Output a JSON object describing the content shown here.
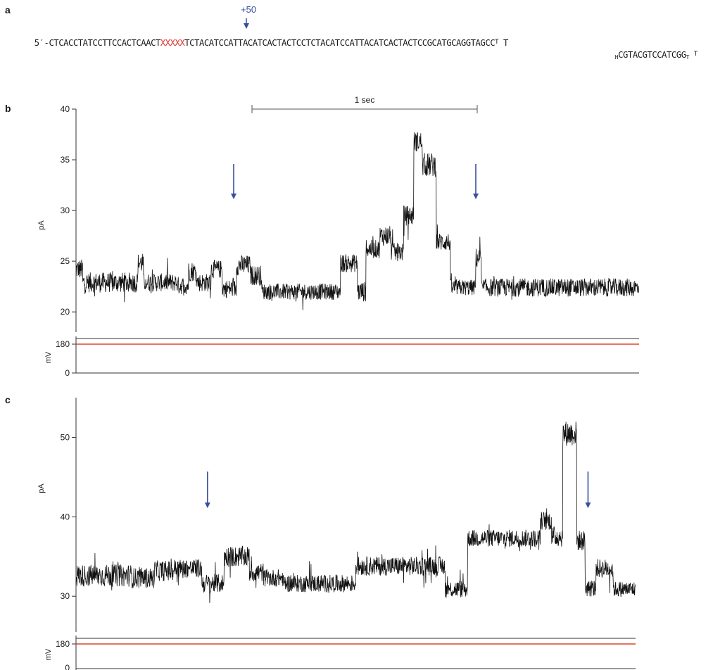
{
  "panel_a": {
    "letter": "a",
    "position_label": "+50",
    "seq_prefix": "5′-CTCACCTATCCTTCCACTCAACT",
    "seq_modified": "XXXXX",
    "seq_main": "TCTACATCCATTACATCACTACTCCTCTACATCCATTACATCACTACTCCGCATGCAGGTAGCC",
    "seq_loop_top": "T",
    "seq_loop_top_end": "T",
    "seq_bottom_start": "H",
    "seq_bottom": "CGTACGTCCATCGG",
    "seq_bottom_loop": "T",
    "seq_bottom_end": "T"
  },
  "colors": {
    "trace": "#111111",
    "arrow": "#3a4f9c",
    "voltage_line": "#e0452a",
    "modified_bases": "#e0302a"
  },
  "chart_data": [
    {
      "panel": "b",
      "type": "line",
      "ylabel": "pA",
      "yticks": [
        20,
        25,
        30,
        35,
        40
      ],
      "ylim": [
        18,
        40
      ],
      "scale_bar_label": "1 sec",
      "arrows_at_fraction_of_time": [
        0.28,
        0.71
      ],
      "segments": [
        {
          "t": [
            0.0,
            0.012
          ],
          "level": 24.2,
          "noise": 1.0
        },
        {
          "t": [
            0.012,
            0.11
          ],
          "level": 22.9,
          "noise": 1.0
        },
        {
          "t": [
            0.11,
            0.12
          ],
          "level": 24.8,
          "noise": 1.0
        },
        {
          "t": [
            0.12,
            0.18
          ],
          "level": 22.9,
          "noise": 0.9
        },
        {
          "t": [
            0.18,
            0.2
          ],
          "level": 22.6,
          "noise": 0.9
        },
        {
          "t": [
            0.2,
            0.215
          ],
          "level": 24.0,
          "noise": 1.0
        },
        {
          "t": [
            0.215,
            0.24
          ],
          "level": 22.9,
          "noise": 0.9
        },
        {
          "t": [
            0.24,
            0.26
          ],
          "level": 24.2,
          "noise": 0.9
        },
        {
          "t": [
            0.26,
            0.285
          ],
          "level": 22.3,
          "noise": 0.9
        },
        {
          "t": [
            0.285,
            0.31
          ],
          "level": 24.6,
          "noise": 1.0
        },
        {
          "t": [
            0.31,
            0.33
          ],
          "level": 23.6,
          "noise": 1.0
        },
        {
          "t": [
            0.33,
            0.47
          ],
          "level": 22.0,
          "noise": 0.8
        },
        {
          "t": [
            0.47,
            0.5
          ],
          "level": 24.8,
          "noise": 0.9
        },
        {
          "t": [
            0.5,
            0.515
          ],
          "level": 22.0,
          "noise": 1.0
        },
        {
          "t": [
            0.515,
            0.54
          ],
          "level": 26.2,
          "noise": 0.9
        },
        {
          "t": [
            0.54,
            0.56
          ],
          "level": 27.5,
          "noise": 1.0
        },
        {
          "t": [
            0.56,
            0.582
          ],
          "level": 25.9,
          "noise": 0.9
        },
        {
          "t": [
            0.582,
            0.6
          ],
          "level": 29.5,
          "noise": 1.0
        },
        {
          "t": [
            0.6,
            0.615
          ],
          "level": 36.8,
          "noise": 1.0
        },
        {
          "t": [
            0.615,
            0.64
          ],
          "level": 34.5,
          "noise": 1.2
        },
        {
          "t": [
            0.64,
            0.665
          ],
          "level": 26.9,
          "noise": 0.9
        },
        {
          "t": [
            0.665,
            0.71
          ],
          "level": 22.4,
          "noise": 0.8
        },
        {
          "t": [
            0.71,
            0.72
          ],
          "level": 25.3,
          "noise": 1.0
        },
        {
          "t": [
            0.72,
            1.0
          ],
          "level": 22.4,
          "noise": 0.9
        }
      ]
    },
    {
      "panel": "c",
      "type": "line",
      "ylabel": "pA",
      "yticks": [
        30,
        40,
        50
      ],
      "ylim": [
        25.5,
        55
      ],
      "arrows_at_fraction_of_time": [
        0.235,
        0.915
      ],
      "segments": [
        {
          "t": [
            0.0,
            0.1
          ],
          "level": 32.6,
          "noise": 1.4
        },
        {
          "t": [
            0.1,
            0.14
          ],
          "level": 32.3,
          "noise": 1.3
        },
        {
          "t": [
            0.14,
            0.175
          ],
          "level": 33.2,
          "noise": 1.3
        },
        {
          "t": [
            0.175,
            0.225
          ],
          "level": 33.5,
          "noise": 1.2
        },
        {
          "t": [
            0.225,
            0.265
          ],
          "level": 31.6,
          "noise": 1.2
        },
        {
          "t": [
            0.265,
            0.31
          ],
          "level": 35.0,
          "noise": 1.3
        },
        {
          "t": [
            0.31,
            0.335
          ],
          "level": 33.0,
          "noise": 1.2
        },
        {
          "t": [
            0.335,
            0.37
          ],
          "level": 32.3,
          "noise": 1.1
        },
        {
          "t": [
            0.37,
            0.5
          ],
          "level": 31.6,
          "noise": 1.1
        },
        {
          "t": [
            0.5,
            0.66
          ],
          "level": 33.8,
          "noise": 1.2
        },
        {
          "t": [
            0.66,
            0.7
          ],
          "level": 30.9,
          "noise": 1.1
        },
        {
          "t": [
            0.7,
            0.83
          ],
          "level": 37.3,
          "noise": 1.1
        },
        {
          "t": [
            0.83,
            0.85
          ],
          "level": 39.5,
          "noise": 1.2
        },
        {
          "t": [
            0.85,
            0.87
          ],
          "level": 37.5,
          "noise": 1.3
        },
        {
          "t": [
            0.87,
            0.895
          ],
          "level": 50.5,
          "noise": 1.6
        },
        {
          "t": [
            0.895,
            0.91
          ],
          "level": 37.0,
          "noise": 1.3
        },
        {
          "t": [
            0.91,
            0.93
          ],
          "level": 31.0,
          "noise": 1.1
        },
        {
          "t": [
            0.93,
            0.96
          ],
          "level": 33.5,
          "noise": 1.2
        },
        {
          "t": [
            0.96,
            1.0
          ],
          "level": 30.9,
          "noise": 1.0
        }
      ]
    }
  ],
  "voltage": {
    "ylabel": "mV",
    "ticks": [
      0,
      180
    ],
    "value_mv": 180
  }
}
